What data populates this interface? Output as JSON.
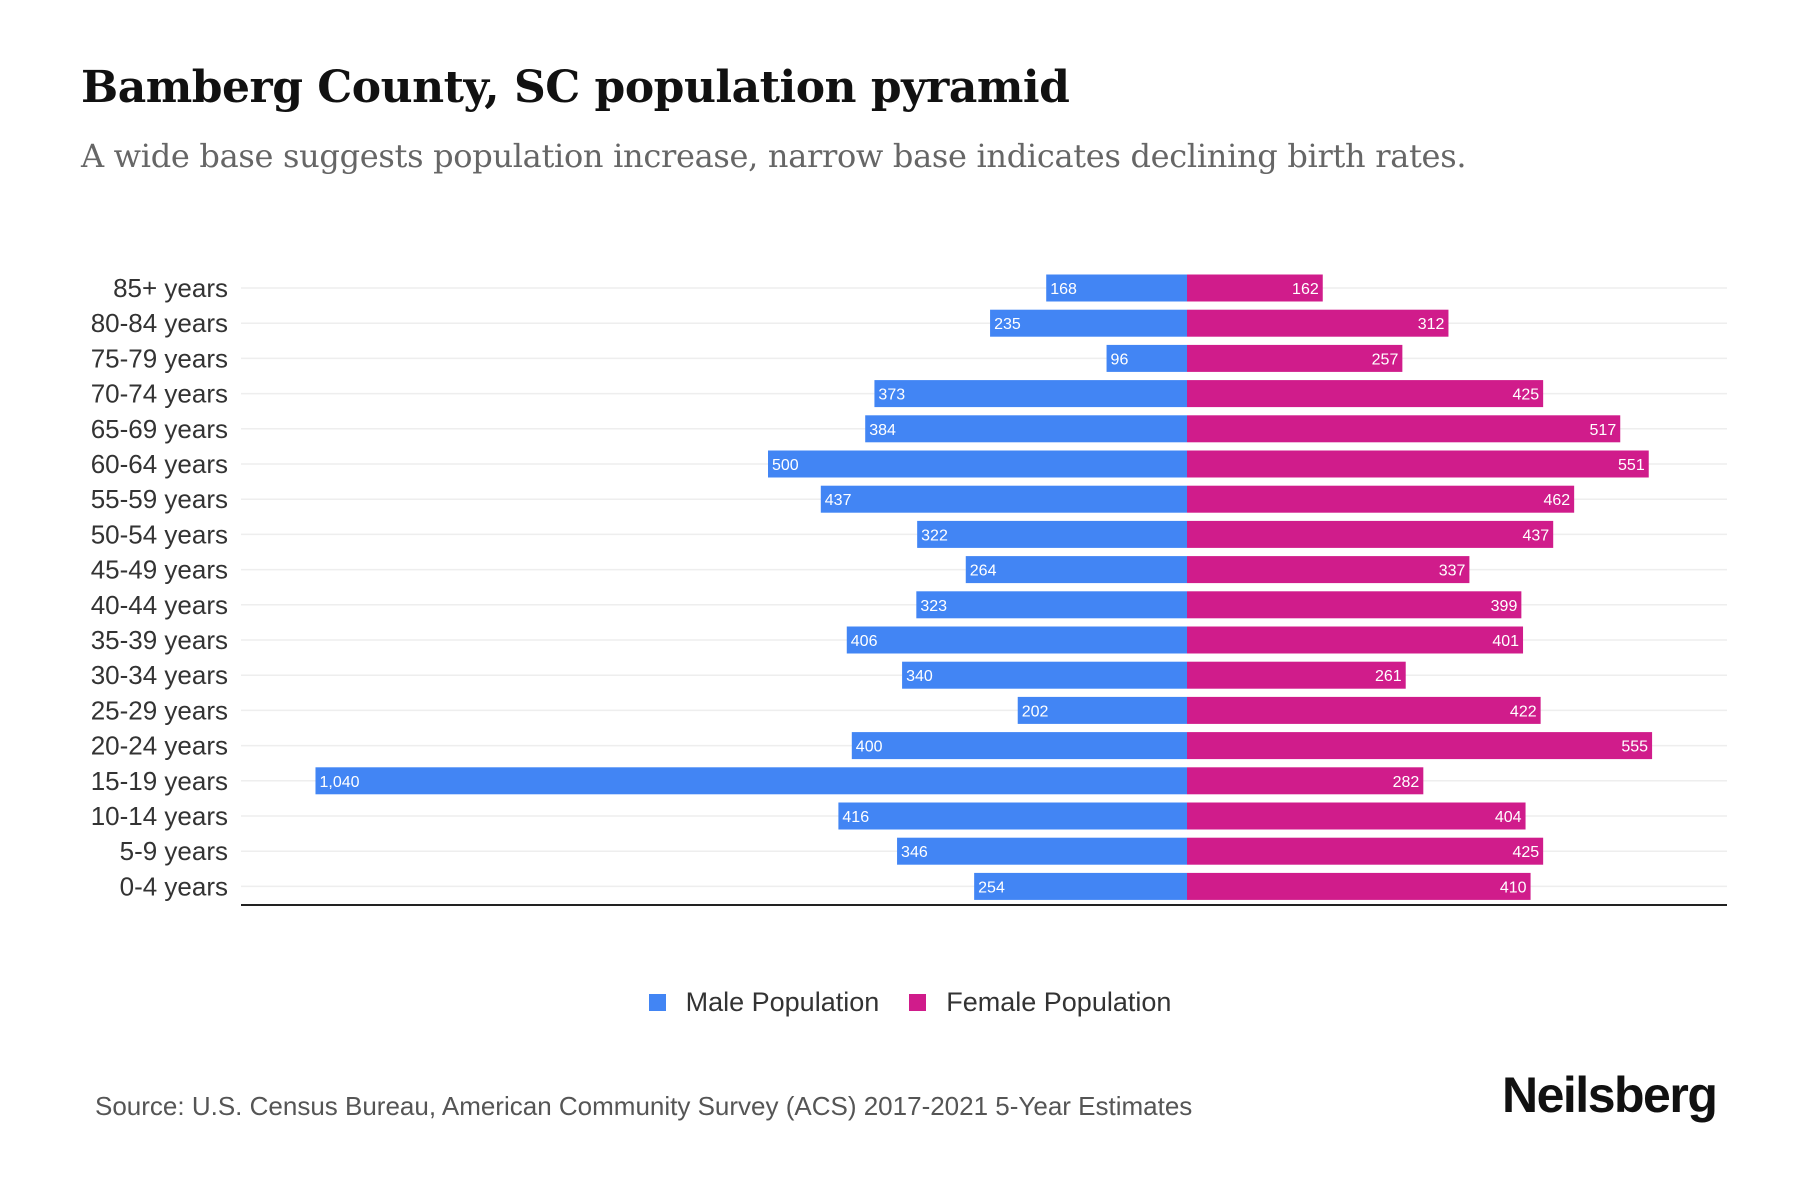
{
  "header": {
    "title": "Bamberg County, SC population pyramid",
    "subtitle": "A wide base suggests population increase, narrow base indicates declining birth rates."
  },
  "chart_data": {
    "type": "bar",
    "orientation": "horizontal-pyramid",
    "categories": [
      "85+ years",
      "80-84 years",
      "75-79 years",
      "70-74 years",
      "65-69 years",
      "60-64 years",
      "55-59 years",
      "50-54 years",
      "45-49 years",
      "40-44 years",
      "35-39 years",
      "30-34 years",
      "25-29 years",
      "20-24 years",
      "15-19 years",
      "10-14 years",
      "5-9 years",
      "0-4 years"
    ],
    "series": [
      {
        "name": "Male Population",
        "color": "#4285f4",
        "values": [
          168,
          235,
          96,
          373,
          384,
          500,
          437,
          322,
          264,
          323,
          406,
          340,
          202,
          400,
          1040,
          416,
          346,
          254
        ],
        "labels": [
          "168",
          "235",
          "96",
          "373",
          "384",
          "500",
          "437",
          "322",
          "264",
          "323",
          "406",
          "340",
          "202",
          "400",
          "1,040",
          "416",
          "346",
          "254"
        ]
      },
      {
        "name": "Female Population",
        "color": "#d01c8b",
        "values": [
          162,
          312,
          257,
          425,
          517,
          551,
          462,
          437,
          337,
          399,
          401,
          261,
          422,
          555,
          282,
          404,
          425,
          410
        ],
        "labels": [
          "162",
          "312",
          "257",
          "425",
          "517",
          "551",
          "462",
          "437",
          "337",
          "399",
          "401",
          "261",
          "422",
          "555",
          "282",
          "404",
          "425",
          "410"
        ]
      }
    ],
    "legend": "bottom-center",
    "grid": true
  },
  "footer": {
    "source": "Source: U.S. Census Bureau, American Community Survey (ACS) 2017-2021 5-Year Estimates",
    "logo": "Neilsberg"
  }
}
